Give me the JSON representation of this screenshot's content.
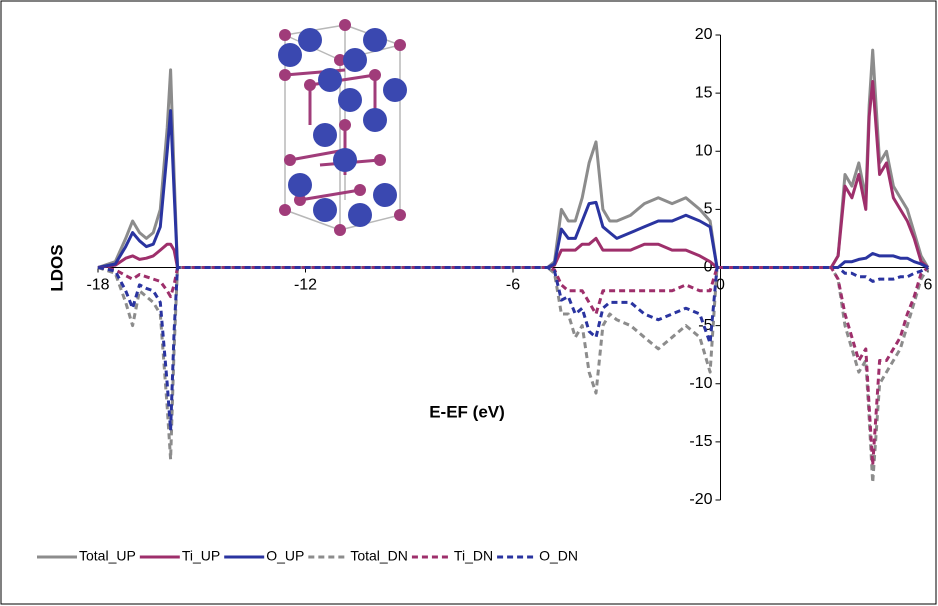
{
  "chart_data": {
    "type": "line",
    "x_label": "E-EF (eV)",
    "y_label": "LDOS",
    "xlim": [
      -18,
      6
    ],
    "xticks": [
      -18,
      -12,
      -6,
      0,
      6
    ],
    "ylim": [
      -20,
      20
    ],
    "yticks": [
      -20,
      -15,
      -10,
      -5,
      0,
      5,
      10,
      15,
      20
    ],
    "x": [
      -18,
      -17.5,
      -17.2,
      -17.0,
      -16.8,
      -16.6,
      -16.4,
      -16.2,
      -16.0,
      -15.9,
      -15.8,
      -15.7,
      -15.5,
      -5.0,
      -4.8,
      -4.6,
      -4.4,
      -4.2,
      -4.0,
      -3.8,
      -3.6,
      -3.4,
      -3.2,
      -3.0,
      -2.6,
      -2.2,
      -1.8,
      -1.4,
      -1.0,
      -0.6,
      -0.3,
      -0.1,
      0.2,
      3.2,
      3.4,
      3.6,
      3.8,
      4.0,
      4.2,
      4.3,
      4.4,
      4.6,
      4.8,
      5.0,
      5.2,
      5.4,
      5.6,
      5.8,
      6.0
    ],
    "series": [
      {
        "name": "Total_UP",
        "color": "#8c8c8c",
        "dash": false,
        "values": [
          0,
          0.5,
          2.5,
          4,
          3,
          2.5,
          3,
          5,
          12,
          17,
          8,
          0,
          0,
          0,
          0.5,
          5,
          4,
          4,
          6,
          9,
          10.8,
          5,
          4,
          4,
          4.5,
          5.5,
          6,
          5.5,
          6,
          5,
          4,
          0,
          0,
          0,
          1,
          8,
          7,
          9,
          6,
          14,
          18.7,
          9,
          10,
          7,
          6,
          5,
          3,
          1,
          0
        ]
      },
      {
        "name": "Ti_UP",
        "color": "#9e2f6b",
        "dash": false,
        "values": [
          0,
          0.2,
          0.8,
          1,
          0.7,
          0.8,
          1,
          1.5,
          2,
          2,
          1.5,
          0,
          0,
          0,
          0.2,
          1.5,
          1.5,
          1.5,
          2,
          2,
          2.5,
          1.5,
          1.5,
          1.5,
          1.5,
          2,
          2,
          1.5,
          1.5,
          1,
          0.5,
          0,
          0,
          0,
          1,
          7,
          6,
          8,
          5,
          13,
          16,
          8,
          9,
          6,
          5,
          4,
          2.5,
          0.5,
          0
        ]
      },
      {
        "name": "O_UP",
        "color": "#2a34a0",
        "dash": false,
        "values": [
          0,
          0.3,
          1.8,
          3,
          2.3,
          1.8,
          2,
          3.5,
          10,
          13.5,
          6.5,
          0,
          0,
          0,
          0.3,
          3.3,
          2.5,
          2.5,
          4,
          5.5,
          5.6,
          3.5,
          3,
          2.5,
          3,
          3.5,
          4,
          4,
          4.5,
          4,
          3.5,
          0,
          0,
          0,
          0,
          0.5,
          0.5,
          0.7,
          0.8,
          1,
          1.2,
          1,
          1,
          1,
          0.8,
          0.8,
          0.5,
          0.3,
          0
        ]
      },
      {
        "name": "Total_DN",
        "color": "#8c8c8c",
        "dash": true,
        "values": [
          0,
          -0.5,
          -3,
          -5,
          -2,
          -2.5,
          -3,
          -4,
          -12,
          -16.5,
          -7,
          0,
          0,
          0,
          -0.5,
          -4,
          -4,
          -6,
          -5,
          -9,
          -10.8,
          -5,
          -4,
          -4.5,
          -5,
          -6,
          -7,
          -6,
          -5,
          -6,
          -9,
          0,
          0,
          0,
          -1,
          -5,
          -7,
          -9,
          -8,
          -13,
          -18.5,
          -10,
          -9,
          -8,
          -7,
          -5,
          -3,
          -1,
          0
        ]
      },
      {
        "name": "Ti_DN",
        "color": "#9e2f6b",
        "dash": true,
        "values": [
          0,
          -0.2,
          -0.7,
          -1,
          -0.6,
          -0.8,
          -1,
          -1.2,
          -2,
          -2.5,
          -1.5,
          0,
          0,
          0,
          -0.2,
          -1.5,
          -2,
          -2,
          -2,
          -3,
          -4,
          -2,
          -2,
          -2,
          -2,
          -2,
          -2,
          -2,
          -1.5,
          -2,
          -2,
          0,
          0,
          0,
          -1,
          -4,
          -6,
          -8,
          -7,
          -12,
          -17,
          -8,
          -8,
          -7,
          -6,
          -4,
          -2.5,
          -0.5,
          0
        ]
      },
      {
        "name": "O_DN",
        "color": "#2a34a0",
        "dash": true,
        "values": [
          0,
          -0.3,
          -2,
          -3.5,
          -1.5,
          -1.8,
          -2,
          -3,
          -10,
          -14,
          -5.5,
          0,
          0,
          0,
          -0.3,
          -2.8,
          -2.5,
          -4,
          -3.5,
          -5.5,
          -6,
          -3.5,
          -3,
          -3,
          -3,
          -4,
          -4.5,
          -4,
          -3.5,
          -4,
          -6.5,
          0,
          0,
          0,
          0,
          -0.5,
          -0.5,
          -0.8,
          -0.8,
          -1,
          -1.2,
          -1,
          -1,
          -1,
          -0.8,
          -0.8,
          -0.5,
          -0.3,
          0
        ]
      }
    ]
  }
}
